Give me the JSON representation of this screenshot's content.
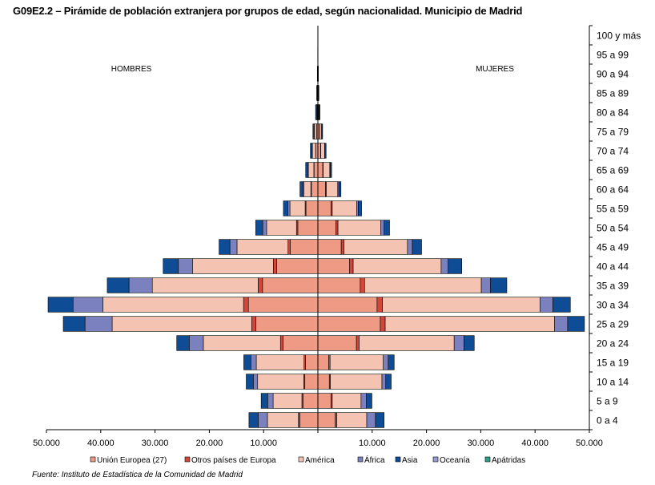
{
  "title": "G09E2.2 – Pirámide de población extranjera por grupos de edad, según nacionalidad. Municipio de Madrid",
  "source": "Fuente: Instituto de Estadística de la Comunidad de Madrid",
  "chart_data": {
    "type": "bar",
    "orientation": "horizontal-stacked-pyramid",
    "left_label": "HOMBRES",
    "right_label": "MUJERES",
    "age_groups": [
      "0 a 4",
      "5 a 9",
      "10 a 14",
      "15 a 19",
      "20 a 24",
      "25 a 29",
      "30 a 34",
      "35 a 39",
      "40 a 44",
      "45 a 49",
      "50 a 54",
      "55 a 59",
      "60 a 64",
      "65 a 69",
      "70 a 74",
      "75 a 79",
      "80 a 84",
      "85 a 89",
      "90 a 94",
      "95 a 99",
      "100 y más"
    ],
    "x_ticks": [
      "50.000",
      "40.000",
      "30.000",
      "20.000",
      "10.000",
      "",
      "10.000",
      "20.000",
      "30.000",
      "40.000",
      "50.000"
    ],
    "xlim": [
      -50000,
      50000
    ],
    "colors": [
      "#EE9A84",
      "#D4463A",
      "#F4C3B1",
      "#7B80BE",
      "#0F4C96",
      "#9A9AD6",
      "#2EA08A"
    ],
    "series": [
      {
        "name": "Unión Europea (27)",
        "hombres": [
          3300,
          2700,
          2400,
          2300,
          6400,
          11400,
          12800,
          10200,
          7600,
          5100,
          3700,
          2200,
          1200,
          700,
          400,
          250,
          120,
          60,
          30,
          10,
          5
        ],
        "mujeres": [
          3200,
          2400,
          2100,
          2000,
          7100,
          11500,
          10900,
          7800,
          5800,
          4300,
          3300,
          2400,
          1400,
          900,
          500,
          300,
          150,
          70,
          35,
          10,
          5
        ]
      },
      {
        "name": "Otros países de Europa",
        "hombres": [
          300,
          250,
          200,
          250,
          500,
          800,
          900,
          800,
          600,
          400,
          250,
          150,
          100,
          50,
          30,
          20,
          10,
          5,
          2,
          1,
          0
        ],
        "mujeres": [
          300,
          250,
          200,
          250,
          500,
          900,
          1000,
          800,
          700,
          500,
          400,
          250,
          150,
          80,
          50,
          30,
          15,
          8,
          3,
          1,
          0
        ]
      },
      {
        "name": "América",
        "hombres": [
          5700,
          5300,
          8500,
          8800,
          14200,
          25700,
          25900,
          19500,
          14900,
          9400,
          5500,
          2800,
          1300,
          1000,
          600,
          400,
          120,
          50,
          20,
          5,
          2
        ],
        "mujeres": [
          5500,
          5300,
          9500,
          9800,
          17500,
          31200,
          29000,
          21500,
          16200,
          11700,
          7900,
          4500,
          2100,
          1200,
          700,
          350,
          100,
          40,
          15,
          5,
          2
        ]
      },
      {
        "name": "África",
        "hombres": [
          1700,
          1000,
          800,
          1000,
          2600,
          5000,
          5500,
          4300,
          2600,
          1300,
          700,
          400,
          200,
          150,
          100,
          50,
          20,
          10,
          5,
          0,
          0
        ],
        "mujeres": [
          1600,
          1000,
          700,
          900,
          1800,
          2400,
          2400,
          1700,
          1300,
          900,
          600,
          300,
          200,
          100,
          60,
          40,
          15,
          8,
          3,
          0,
          0
        ]
      },
      {
        "name": "Asia",
        "hombres": [
          1700,
          1200,
          1300,
          1300,
          2300,
          4000,
          4600,
          4000,
          2800,
          2000,
          1300,
          800,
          500,
          350,
          250,
          200,
          150,
          100,
          50,
          20,
          10
        ],
        "mujeres": [
          1600,
          1000,
          1000,
          1100,
          1900,
          3100,
          3200,
          3000,
          2500,
          1700,
          1000,
          600,
          400,
          250,
          200,
          150,
          100,
          60,
          30,
          10,
          5
        ],
        "show_in_legend": true
      },
      {
        "name": "Oceanía",
        "hombres": [
          0,
          0,
          0,
          0,
          0,
          0,
          0,
          0,
          0,
          0,
          0,
          0,
          0,
          0,
          0,
          0,
          0,
          0,
          0,
          0,
          0
        ],
        "mujeres": [
          0,
          0,
          0,
          0,
          0,
          0,
          0,
          0,
          0,
          0,
          0,
          0,
          0,
          0,
          0,
          0,
          0,
          0,
          0,
          0,
          0
        ]
      },
      {
        "name": "Apátridas",
        "hombres": [
          0,
          0,
          0,
          0,
          0,
          0,
          0,
          0,
          0,
          0,
          0,
          0,
          0,
          0,
          0,
          0,
          0,
          0,
          0,
          0,
          0
        ],
        "mujeres": [
          0,
          0,
          0,
          0,
          0,
          0,
          0,
          0,
          0,
          0,
          0,
          0,
          0,
          0,
          0,
          0,
          0,
          0,
          0,
          0,
          0
        ]
      }
    ],
    "legend_placement": "bottom",
    "grid": false
  }
}
